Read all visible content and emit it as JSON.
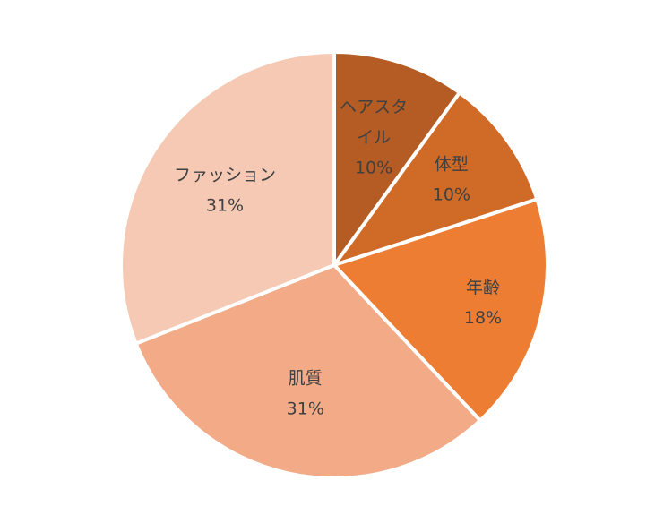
{
  "chart_data": {
    "type": "pie",
    "slices": [
      {
        "name": "ヘアスタイル",
        "label_lines": [
          "ヘアスタ",
          "イル"
        ],
        "value": 10,
        "value_label": "10%",
        "color": "#b45c24"
      },
      {
        "name": "体型",
        "label_lines": [
          "体型"
        ],
        "value": 10,
        "value_label": "10%",
        "color": "#cf6a27"
      },
      {
        "name": "年齢",
        "label_lines": [
          "年齢"
        ],
        "value": 18,
        "value_label": "18%",
        "color": "#ec7d32"
      },
      {
        "name": "肌質",
        "label_lines": [
          "肌質"
        ],
        "value": 31,
        "value_label": "31%",
        "color": "#f2aa87"
      },
      {
        "name": "ファッション",
        "label_lines": [
          "ファッション"
        ],
        "value": 31,
        "value_label": "31%",
        "color": "#f5c9b4"
      }
    ],
    "legend": "none"
  }
}
